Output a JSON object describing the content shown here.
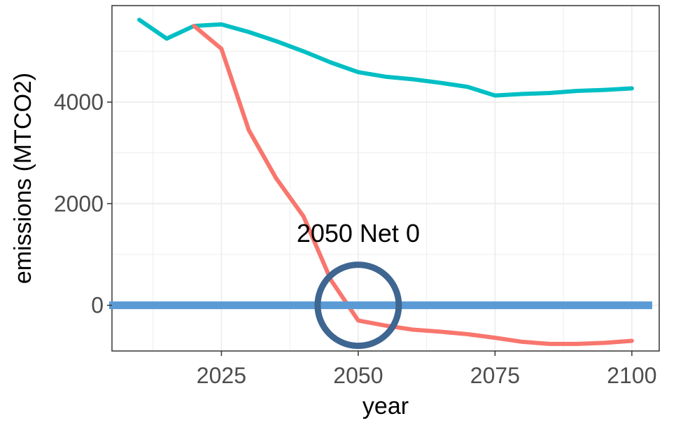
{
  "chart_data": {
    "type": "line",
    "xlabel": "year",
    "ylabel": "emissions (MTCO2)",
    "xlim": [
      2005,
      2105
    ],
    "ylim": [
      -900,
      5900
    ],
    "x_ticks": [
      2025,
      2050,
      2075,
      2100
    ],
    "y_ticks": [
      0,
      2000,
      4000
    ],
    "grid": true,
    "series": [
      {
        "color": "#00bfc4",
        "x": [
          2010,
          2015,
          2020,
          2025,
          2030,
          2035,
          2040,
          2045,
          2050,
          2055,
          2060,
          2065,
          2070,
          2075,
          2080,
          2085,
          2090,
          2095,
          2100
        ],
        "y": [
          5620,
          5250,
          5500,
          5530,
          5380,
          5200,
          5000,
          4780,
          4590,
          4500,
          4450,
          4380,
          4300,
          4130,
          4160,
          4180,
          4220,
          4240,
          4270
        ]
      },
      {
        "color": "#f8766d",
        "x": [
          2020,
          2025,
          2030,
          2035,
          2040,
          2045,
          2050,
          2055,
          2060,
          2065,
          2070,
          2075,
          2080,
          2085,
          2090,
          2095,
          2100
        ],
        "y": [
          5500,
          5050,
          3450,
          2500,
          1750,
          500,
          -300,
          -400,
          -480,
          -520,
          -570,
          -640,
          -720,
          -760,
          -760,
          -740,
          -700
        ]
      }
    ],
    "reference_line": {
      "y": 0,
      "color": "#5b9bd5"
    },
    "annotation": {
      "text": "2050 Net 0",
      "x": 2050,
      "y": 0,
      "circle_color": "#3e6691"
    }
  }
}
